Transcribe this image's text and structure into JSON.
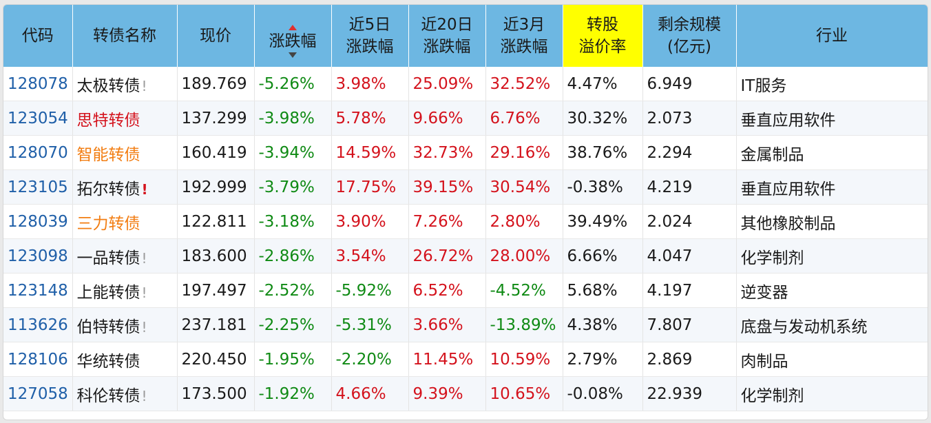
{
  "headers": {
    "code": "代码",
    "name": "转债名称",
    "price": "现价",
    "change": "涨跌幅",
    "chg5d_1": "近5日",
    "chg5d_2": "涨跌幅",
    "chg20d_1": "近20日",
    "chg20d_2": "涨跌幅",
    "chg3m_1": "近3月",
    "chg3m_2": "涨跌幅",
    "premium_1": "转股",
    "premium_2": "溢价率",
    "scale_1": "剩余规模",
    "scale_2": "(亿元)",
    "industry": "行业"
  },
  "colors": {
    "header_bg": "#6db7e2",
    "highlight_bg": "#ffff00",
    "up": "#d4121c",
    "down": "#0f8a14",
    "code": "#1f5fa8",
    "orange": "#f27d12"
  },
  "rows": [
    {
      "code": "128078",
      "name": "太极转债",
      "name_color": "black",
      "bang": "!",
      "bang_red": false,
      "price": "189.769",
      "change": "-5.26%",
      "c5": "3.98%",
      "c20": "25.09%",
      "c3m": "32.52%",
      "premium": "4.47%",
      "scale": "6.949",
      "industry": "IT服务"
    },
    {
      "code": "123054",
      "name": "思特转债",
      "name_color": "red",
      "bang": "",
      "bang_red": false,
      "price": "137.299",
      "change": "-3.98%",
      "c5": "5.78%",
      "c20": "9.66%",
      "c3m": "6.76%",
      "premium": "30.32%",
      "scale": "2.073",
      "industry": "垂直应用软件"
    },
    {
      "code": "128070",
      "name": "智能转债",
      "name_color": "orange",
      "bang": "",
      "bang_red": false,
      "price": "160.419",
      "change": "-3.94%",
      "c5": "14.59%",
      "c20": "32.73%",
      "c3m": "29.16%",
      "premium": "38.76%",
      "scale": "2.294",
      "industry": "金属制品"
    },
    {
      "code": "123105",
      "name": "拓尔转债",
      "name_color": "black",
      "bang": "!",
      "bang_red": true,
      "price": "192.999",
      "change": "-3.79%",
      "c5": "17.75%",
      "c20": "39.15%",
      "c3m": "30.54%",
      "premium": "-0.38%",
      "scale": "4.219",
      "industry": "垂直应用软件"
    },
    {
      "code": "128039",
      "name": "三力转债",
      "name_color": "orange",
      "bang": "",
      "bang_red": false,
      "price": "122.811",
      "change": "-3.18%",
      "c5": "3.90%",
      "c20": "7.26%",
      "c3m": "2.80%",
      "premium": "39.49%",
      "scale": "2.024",
      "industry": "其他橡胶制品"
    },
    {
      "code": "123098",
      "name": "一品转债",
      "name_color": "black",
      "bang": "!",
      "bang_red": false,
      "price": "183.600",
      "change": "-2.86%",
      "c5": "3.54%",
      "c20": "26.72%",
      "c3m": "28.00%",
      "premium": "6.66%",
      "scale": "4.047",
      "industry": "化学制剂"
    },
    {
      "code": "123148",
      "name": "上能转债",
      "name_color": "black",
      "bang": "!",
      "bang_red": false,
      "price": "197.497",
      "change": "-2.52%",
      "c5": "-5.92%",
      "c20": "6.52%",
      "c3m": "-4.52%",
      "premium": "5.68%",
      "scale": "4.197",
      "industry": "逆变器"
    },
    {
      "code": "113626",
      "name": "伯特转债",
      "name_color": "black",
      "bang": "!",
      "bang_red": false,
      "price": "237.181",
      "change": "-2.25%",
      "c5": "-5.31%",
      "c20": "3.66%",
      "c3m": "-13.89%",
      "premium": "4.38%",
      "scale": "7.807",
      "industry": "底盘与发动机系统"
    },
    {
      "code": "128106",
      "name": "华统转债",
      "name_color": "black",
      "bang": "",
      "bang_red": false,
      "price": "220.450",
      "change": "-1.95%",
      "c5": "-2.20%",
      "c20": "11.45%",
      "c3m": "10.59%",
      "premium": "2.79%",
      "scale": "2.869",
      "industry": "肉制品"
    },
    {
      "code": "127058",
      "name": "科伦转债",
      "name_color": "black",
      "bang": "!",
      "bang_red": false,
      "price": "173.500",
      "change": "-1.92%",
      "c5": "4.66%",
      "c20": "9.39%",
      "c3m": "10.65%",
      "premium": "-0.08%",
      "scale": "22.939",
      "industry": "化学制剂"
    }
  ]
}
